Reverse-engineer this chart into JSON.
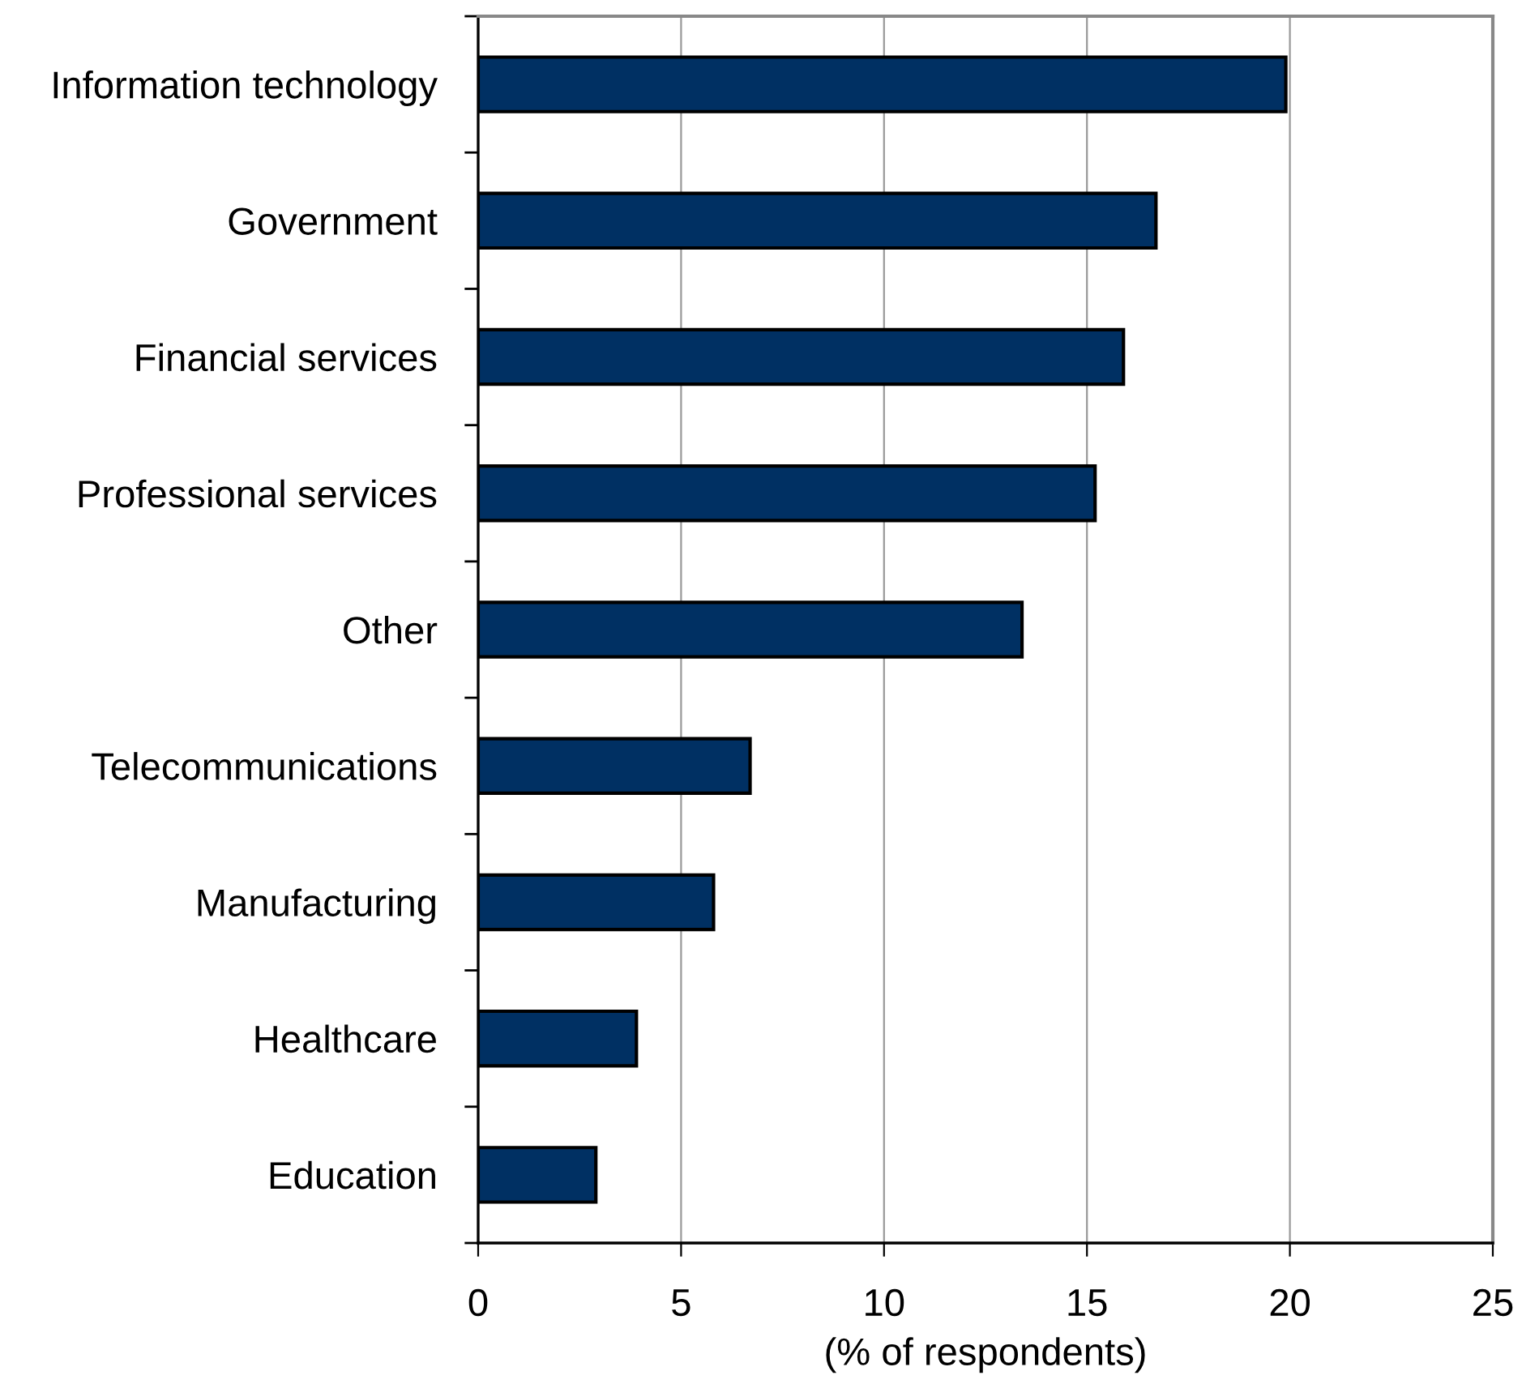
{
  "chart_data": {
    "type": "bar",
    "orientation": "horizontal",
    "xlabel": "(% of respondents)",
    "categories": [
      "Information technology",
      "Government",
      "Financial services",
      "Professional services",
      "Other",
      "Telecommunications",
      "Manufacturing",
      "Healthcare",
      "Education"
    ],
    "values": [
      19.9,
      16.7,
      15.9,
      15.2,
      13.4,
      6.7,
      5.8,
      3.9,
      2.9
    ],
    "color": "#003063",
    "xlim": [
      0,
      25
    ],
    "xticks": [
      0,
      5,
      10,
      15,
      20,
      25
    ],
    "grid": "x"
  }
}
